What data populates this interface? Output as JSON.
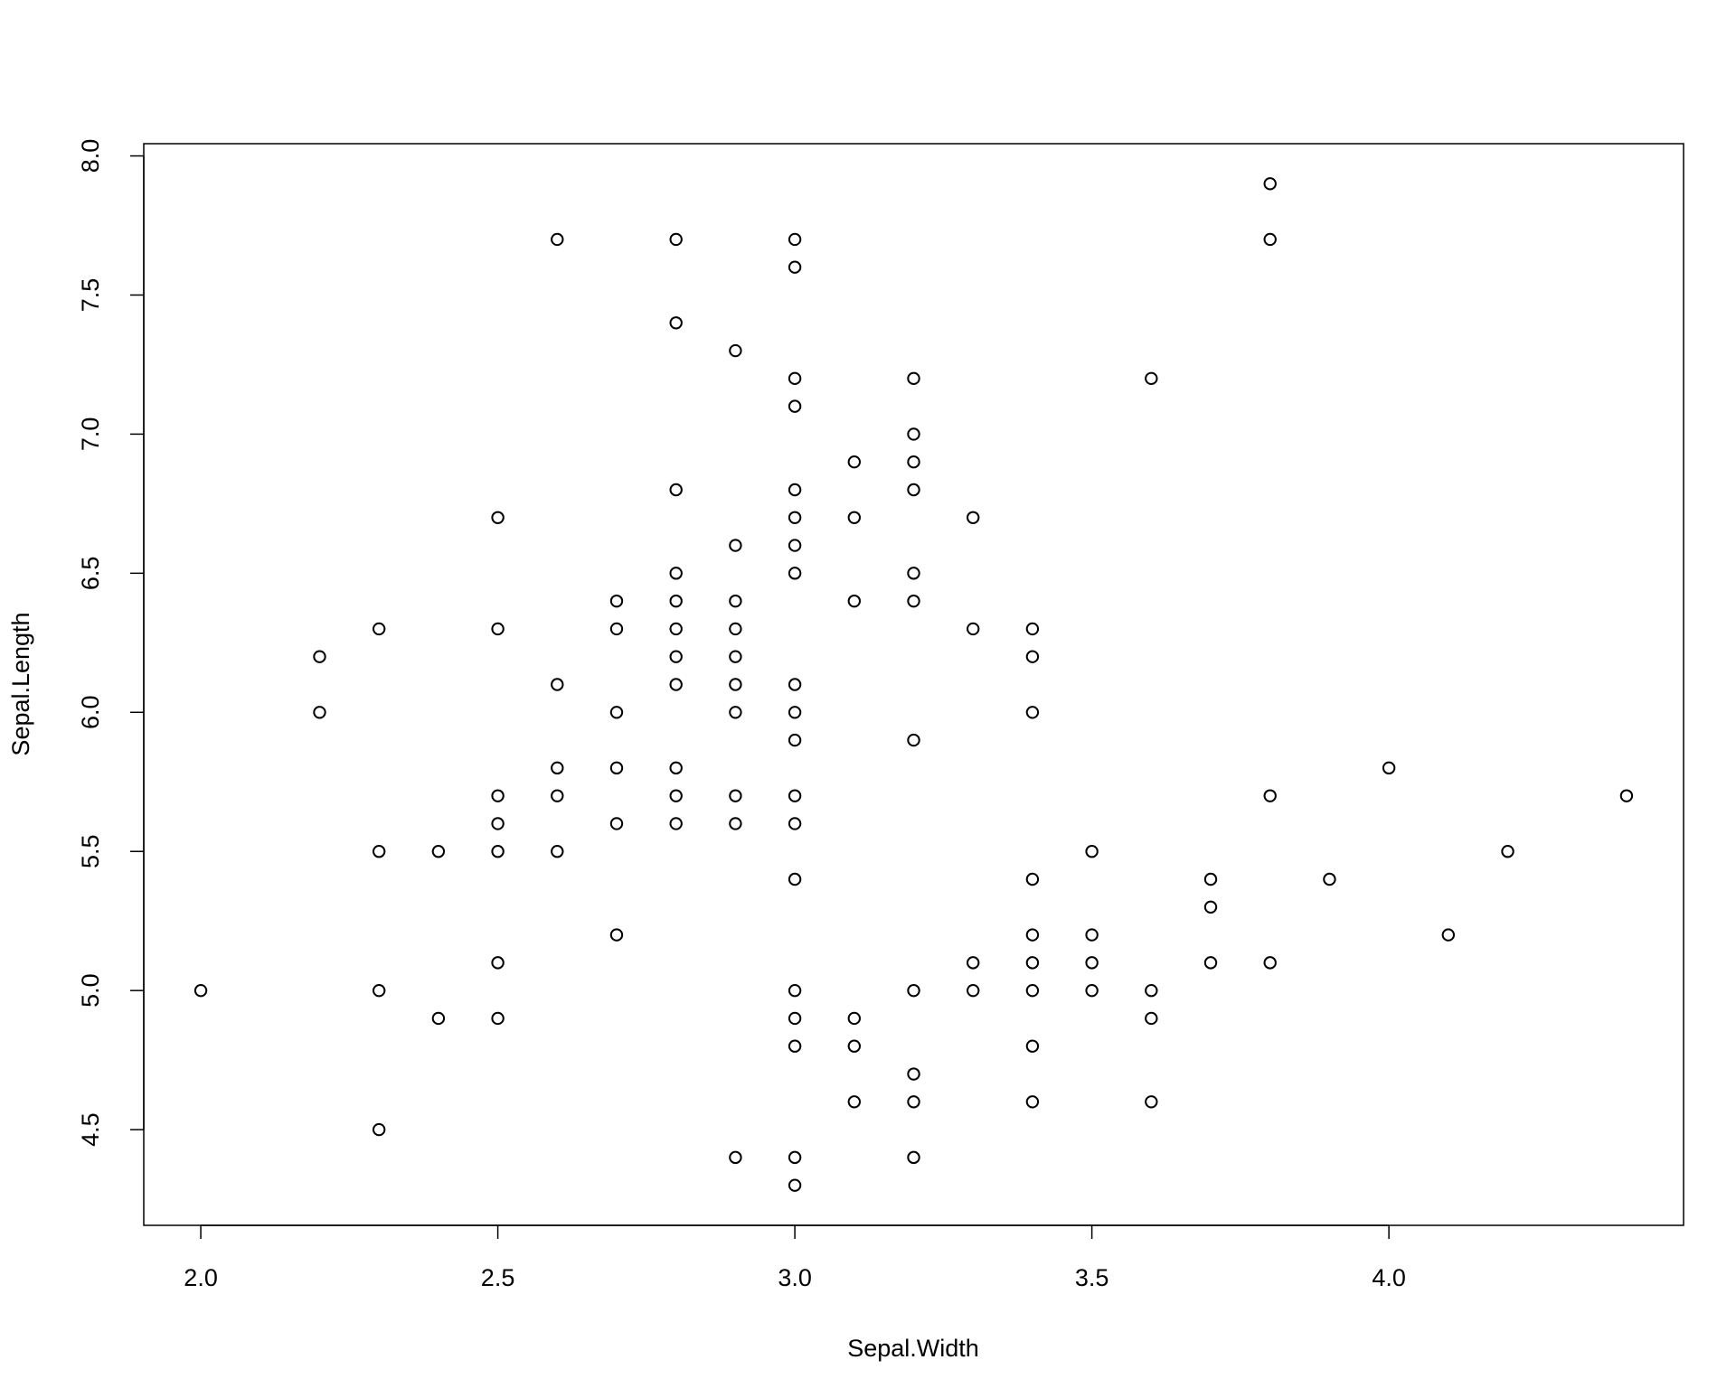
{
  "chart_data": {
    "type": "scatter",
    "x_label": "Sepal.Width",
    "y_label": "Sepal.Length",
    "x": [
      2.0,
      2.2,
      2.2,
      2.3,
      2.3,
      2.3,
      2.3,
      2.4,
      2.4,
      2.5,
      2.5,
      2.5,
      2.5,
      2.5,
      2.5,
      2.5,
      2.6,
      2.6,
      2.6,
      2.6,
      2.6,
      2.7,
      2.7,
      2.7,
      2.7,
      2.7,
      2.7,
      2.8,
      2.8,
      2.8,
      2.8,
      2.8,
      2.8,
      2.8,
      2.8,
      2.8,
      2.8,
      2.8,
      2.9,
      2.9,
      2.9,
      2.9,
      2.9,
      2.9,
      2.9,
      2.9,
      2.9,
      2.9,
      3.0,
      3.0,
      3.0,
      3.0,
      3.0,
      3.0,
      3.0,
      3.0,
      3.0,
      3.0,
      3.0,
      3.0,
      3.0,
      3.0,
      3.0,
      3.0,
      3.0,
      3.0,
      3.0,
      3.1,
      3.1,
      3.1,
      3.1,
      3.1,
      3.1,
      3.2,
      3.2,
      3.2,
      3.2,
      3.2,
      3.2,
      3.2,
      3.2,
      3.2,
      3.2,
      3.2,
      3.3,
      3.3,
      3.3,
      3.3,
      3.4,
      3.4,
      3.4,
      3.4,
      3.4,
      3.4,
      3.4,
      3.4,
      3.4,
      3.5,
      3.5,
      3.5,
      3.5,
      3.6,
      3.6,
      3.6,
      3.6,
      3.7,
      3.7,
      3.7,
      3.8,
      3.8,
      3.8,
      3.8,
      3.9,
      4.0,
      4.1,
      4.2,
      4.4
    ],
    "y": [
      5.0,
      6.2,
      6.0,
      6.3,
      5.5,
      5.0,
      4.5,
      5.5,
      4.9,
      6.7,
      6.3,
      5.7,
      5.6,
      5.5,
      5.1,
      4.9,
      7.7,
      6.1,
      5.8,
      5.7,
      5.5,
      6.4,
      6.3,
      6.0,
      5.8,
      5.6,
      5.2,
      7.7,
      7.4,
      6.8,
      6.5,
      6.4,
      6.3,
      6.2,
      6.1,
      5.8,
      5.7,
      5.6,
      7.3,
      6.6,
      6.4,
      6.3,
      6.2,
      6.1,
      6.0,
      5.7,
      5.6,
      4.4,
      7.7,
      7.6,
      7.2,
      7.1,
      6.8,
      6.7,
      6.6,
      6.5,
      6.1,
      6.0,
      5.9,
      5.7,
      5.6,
      5.4,
      5.0,
      4.9,
      4.8,
      4.4,
      4.3,
      6.9,
      6.7,
      6.4,
      4.9,
      4.8,
      4.6,
      7.2,
      7.0,
      6.9,
      6.8,
      6.5,
      6.4,
      5.9,
      5.0,
      4.7,
      4.6,
      4.4,
      6.7,
      6.3,
      5.1,
      5.0,
      6.3,
      6.2,
      6.0,
      5.4,
      5.2,
      5.1,
      5.0,
      4.8,
      4.6,
      5.5,
      5.2,
      5.1,
      5.0,
      7.2,
      5.0,
      4.9,
      4.6,
      5.4,
      5.3,
      5.1,
      7.9,
      7.7,
      5.7,
      5.1,
      5.4,
      5.8,
      5.2,
      5.5,
      5.7
    ],
    "xlim": [
      1.904,
      4.496
    ],
    "ylim": [
      4.156,
      8.044
    ],
    "xticks": [
      {
        "value": 2,
        "label": "2.0"
      },
      2.5,
      {
        "value": 3,
        "label": "3.0"
      },
      3.5,
      {
        "value": 4,
        "label": "4.0"
      }
    ],
    "yticks": [
      4.5,
      {
        "value": 5,
        "label": "5.0"
      },
      5.5,
      {
        "value": 6,
        "label": "6.0"
      },
      6.5,
      {
        "value": 7,
        "label": "7.0"
      },
      7.5,
      {
        "value": 8,
        "label": "8.0"
      }
    ],
    "color": "#000000"
  }
}
